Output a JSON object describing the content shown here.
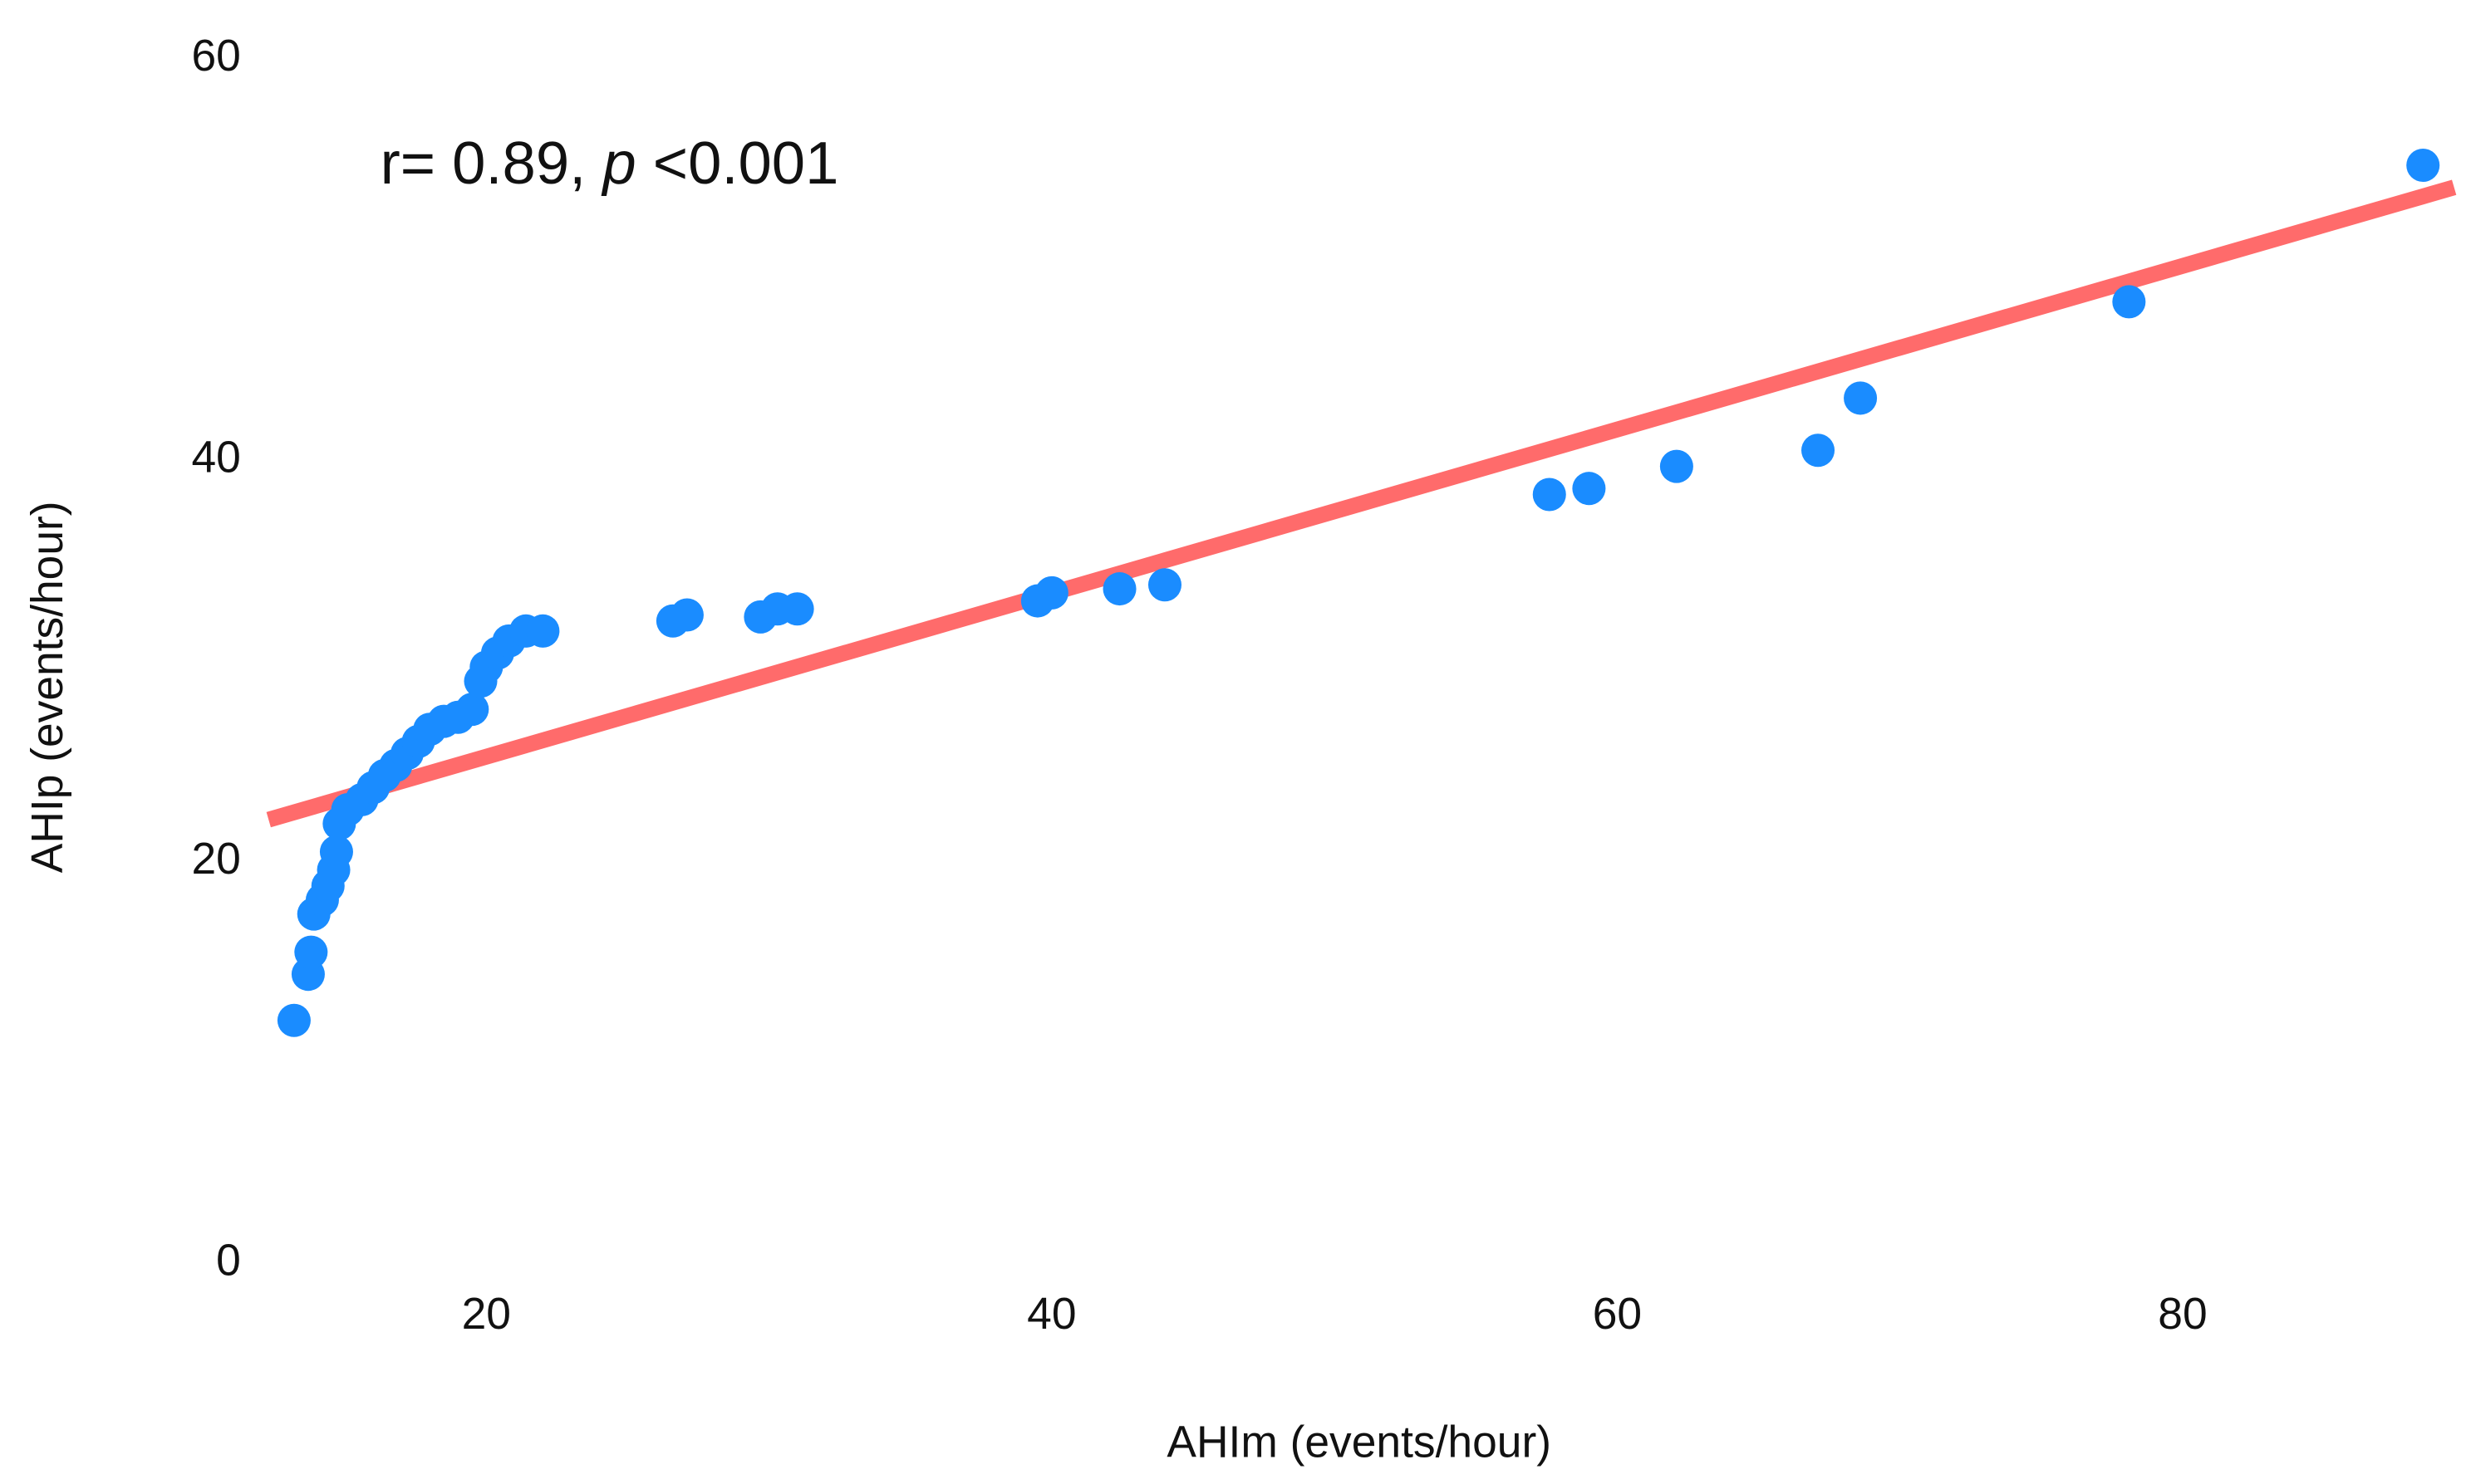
{
  "chart_data": {
    "type": "scatter",
    "annotation": {
      "parts": [
        "r= 0.89, ",
        "p",
        " <0.001"
      ]
    },
    "x_label": "AHIm (events/hour)",
    "y_label": "AHIp (events/hour)",
    "xlim": [
      12,
      90
    ],
    "ylim": [
      0,
      60
    ],
    "xticks": [
      20,
      40,
      60,
      80
    ],
    "yticks": [
      0,
      20,
      40,
      60
    ],
    "grid": false,
    "series": [
      {
        "color": "#1a8cff",
        "x": [
          13.2,
          13.7,
          13.8,
          13.9,
          14.2,
          14.4,
          14.6,
          14.7,
          14.8,
          15.1,
          15.6,
          16.0,
          16.4,
          16.8,
          17.2,
          17.6,
          18.0,
          18.5,
          19.0,
          19.5,
          19.8,
          20.0,
          20.4,
          20.8,
          21.4,
          22.0,
          26.6,
          27.1,
          29.7,
          30.3,
          31.0,
          39.5,
          40.0,
          42.4,
          44.0,
          57.6,
          59.0,
          62.1,
          67.1,
          68.6,
          78.1,
          88.5
        ],
        "values": [
          12.1,
          14.4,
          15.5,
          17.4,
          18.1,
          18.8,
          19.6,
          20.5,
          21.9,
          22.6,
          23.1,
          23.7,
          24.3,
          24.8,
          25.4,
          26.0,
          26.6,
          27.0,
          27.2,
          27.6,
          29.0,
          29.7,
          30.4,
          31.0,
          31.5,
          31.5,
          32.0,
          32.3,
          32.2,
          32.6,
          32.6,
          33.0,
          33.4,
          33.6,
          33.8,
          38.3,
          38.6,
          39.7,
          40.5,
          43.1,
          47.9,
          54.7
        ]
      }
    ],
    "trendline": {
      "color": "#ff6b6b",
      "x": [
        12.3,
        89.6
      ],
      "values": [
        22.1,
        53.6
      ]
    }
  }
}
